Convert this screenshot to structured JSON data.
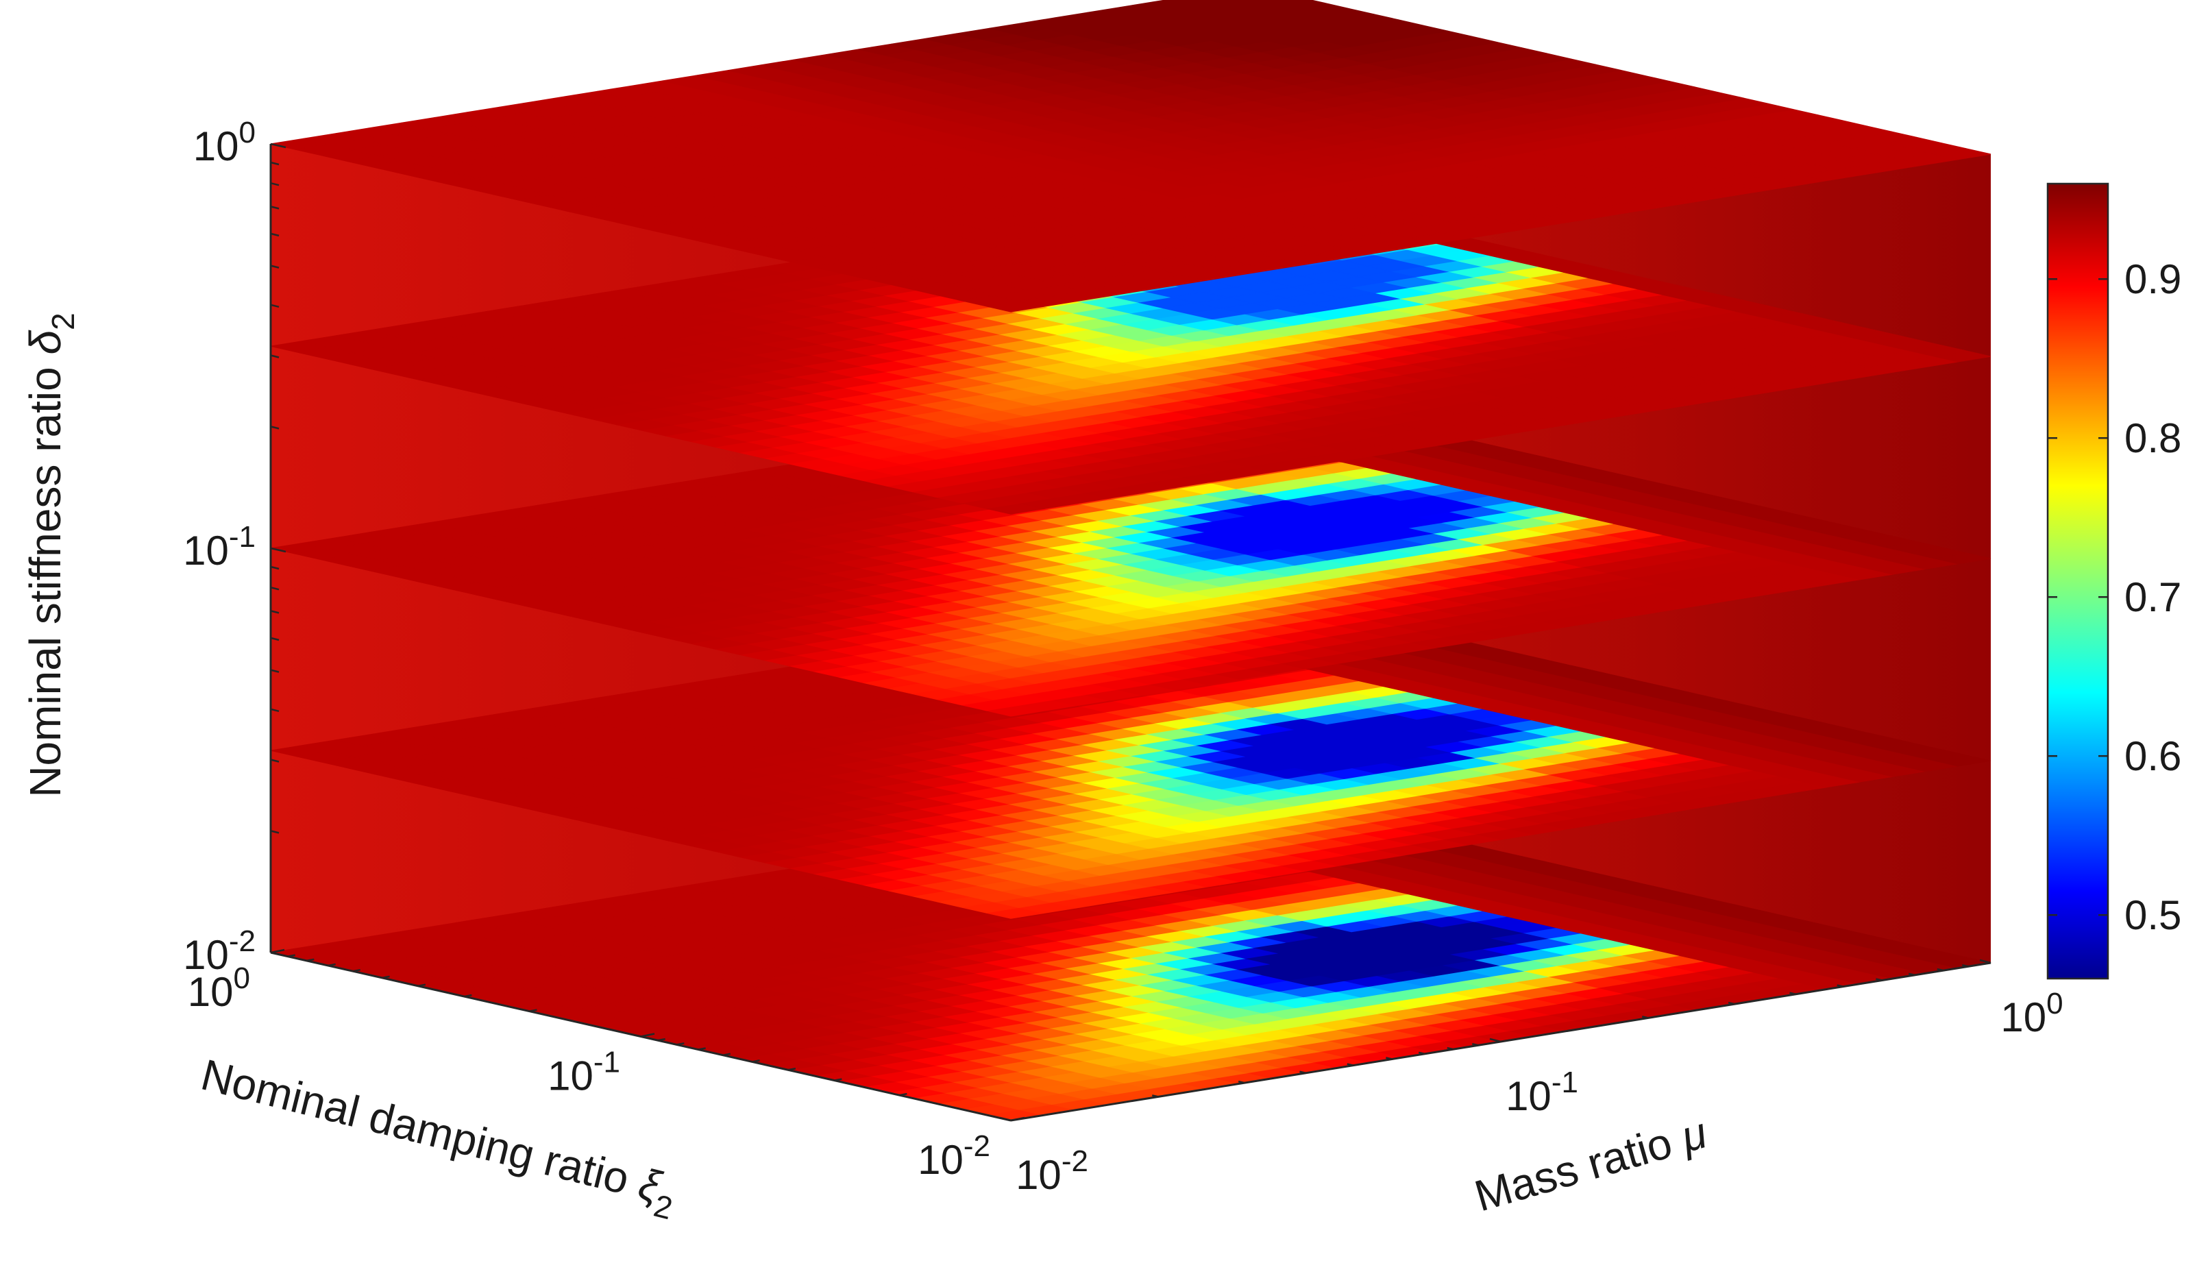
{
  "chart_data": {
    "type": "heatmap",
    "subtype": "3d-slice",
    "title": "",
    "axes": {
      "mu": {
        "label": "Mass ratio",
        "symbol": "μ",
        "scale": "log",
        "range": [
          0.01,
          1
        ],
        "tick_labels": [
          {
            "base": "10",
            "exp": "-2",
            "value": 0.01
          },
          {
            "base": "10",
            "exp": "-1",
            "value": 0.1
          },
          {
            "base": "10",
            "exp": "0",
            "value": 1
          }
        ]
      },
      "xi2": {
        "label": "Nominal damping ratio",
        "symbol": "ξ",
        "subscript": "2",
        "scale": "log",
        "range": [
          0.01,
          1
        ],
        "tick_labels": [
          {
            "base": "10",
            "exp": "-2",
            "value": 0.01
          },
          {
            "base": "10",
            "exp": "-1",
            "value": 0.1
          },
          {
            "base": "10",
            "exp": "0",
            "value": 1
          }
        ]
      },
      "delta2": {
        "label": "Nominal stiffness ratio",
        "symbol": "δ",
        "subscript": "2",
        "scale": "log",
        "range": [
          0.01,
          1
        ],
        "tick_labels": [
          {
            "base": "10",
            "exp": "-2",
            "value": 0.01
          },
          {
            "base": "10",
            "exp": "-1",
            "value": 0.1
          },
          {
            "base": "10",
            "exp": "0",
            "value": 1
          }
        ]
      }
    },
    "slices_delta2": [
      0.01,
      0.0316,
      0.1,
      0.316,
      1
    ],
    "field_features": [
      {
        "delta2": 0.01,
        "min_value": 0.47,
        "min_at": {
          "mu": 0.25,
          "xi2": 0.06
        }
      },
      {
        "delta2": 0.0316,
        "min_value": 0.5,
        "min_at": {
          "mu": 0.25,
          "xi2": 0.07
        }
      },
      {
        "delta2": 0.1,
        "min_value": 0.52,
        "min_at": {
          "mu": 0.28,
          "xi2": 0.1
        }
      },
      {
        "delta2": 0.316,
        "min_value": 0.56,
        "min_at": {
          "mu": 0.4,
          "xi2": 0.2
        }
      },
      {
        "delta2": 1,
        "min_value": 0.93,
        "min_at": null
      }
    ],
    "colorbar": {
      "colormap": "jet",
      "range": [
        0.46,
        0.96
      ],
      "ticks": [
        "0.5",
        "0.6",
        "0.7",
        "0.8",
        "0.9"
      ],
      "tick_values": [
        0.5,
        0.6,
        0.7,
        0.8,
        0.9
      ]
    },
    "grid": false,
    "legend": "none"
  }
}
